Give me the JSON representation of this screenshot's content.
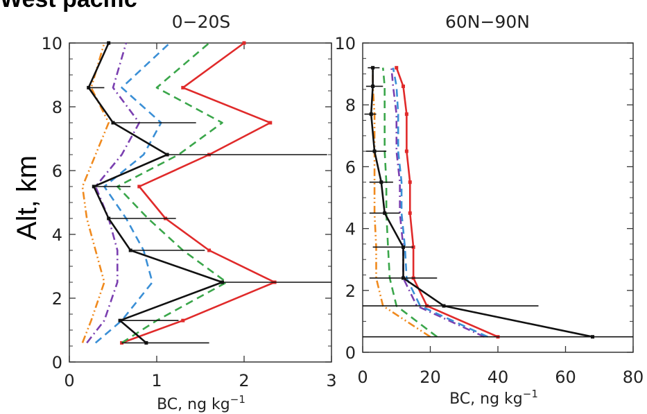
{
  "figure": {
    "region_title": "West pacific",
    "ylabel": "Alt, km",
    "colors": {
      "black": "#111111",
      "red": "#e02a2a",
      "green": "#3aa64a",
      "blue": "#3a8fd6",
      "purple": "#7a3fb0",
      "orange": "#f08a1e"
    }
  },
  "chart_data": [
    {
      "type": "line",
      "title": "0−20S",
      "xlabel_main": "BC, ng kg",
      "xlabel_sup": "−1",
      "ylabel": "Alt, km",
      "xlim": [
        0,
        3
      ],
      "ylim": [
        0,
        10
      ],
      "xticks": [
        "0",
        "1",
        "2",
        "3"
      ],
      "yticks": [
        "0",
        "2",
        "4",
        "6",
        "8",
        "10"
      ],
      "y": [
        0.6,
        1.3,
        2.5,
        3.5,
        4.5,
        5.5,
        6.5,
        7.5,
        8.6,
        10.0
      ],
      "series": [
        {
          "color": "red",
          "style": "solid",
          "markers": true,
          "x": [
            0.6,
            1.3,
            2.35,
            1.6,
            1.1,
            0.8,
            1.6,
            2.3,
            1.3,
            2.0
          ]
        },
        {
          "color": "green",
          "style": "dashed",
          "markers": false,
          "x": [
            0.6,
            1.0,
            1.8,
            1.3,
            0.9,
            0.55,
            1.25,
            1.75,
            1.0,
            1.6
          ]
        },
        {
          "color": "blue",
          "style": "dashed",
          "markers": false,
          "x": [
            0.3,
            0.6,
            0.95,
            0.85,
            0.65,
            0.4,
            0.85,
            1.05,
            0.6,
            1.15
          ]
        },
        {
          "color": "purple",
          "style": "dashdot",
          "markers": false,
          "x": [
            0.2,
            0.4,
            0.55,
            0.55,
            0.45,
            0.3,
            0.6,
            0.8,
            0.5,
            0.65
          ]
        },
        {
          "color": "orange",
          "style": "dashdotdot",
          "markers": false,
          "x": [
            0.15,
            0.25,
            0.4,
            0.3,
            0.2,
            0.15,
            0.3,
            0.45,
            0.25,
            0.4
          ]
        },
        {
          "color": "black",
          "style": "solid",
          "markers": true,
          "x": [
            0.88,
            0.58,
            1.75,
            0.7,
            0.45,
            0.28,
            1.12,
            0.5,
            0.22,
            0.45
          ],
          "xerr_low": [
            0.6,
            0.58,
            1.75,
            0.7,
            0.45,
            0.28,
            1.12,
            0.5,
            0.22,
            null
          ],
          "xerr_high": [
            1.6,
            1.25,
            3.0,
            1.55,
            1.22,
            0.7,
            2.95,
            1.45,
            0.4,
            null
          ]
        }
      ]
    },
    {
      "type": "line",
      "title": "60N−90N",
      "xlabel_main": "BC, ng kg",
      "xlabel_sup": "−1",
      "ylabel": "",
      "xlim": [
        0,
        80
      ],
      "ylim": [
        0,
        10
      ],
      "xticks": [
        "0",
        "20",
        "40",
        "60",
        "80"
      ],
      "yticks": [
        "0",
        "2",
        "4",
        "6",
        "8",
        "10"
      ],
      "y": [
        0.5,
        1.5,
        2.4,
        3.4,
        4.5,
        5.5,
        6.5,
        7.7,
        8.6,
        9.2
      ],
      "series": [
        {
          "color": "red",
          "style": "solid",
          "markers": true,
          "x": [
            40,
            19,
            15,
            15,
            14,
            14,
            13,
            13,
            12,
            10
          ]
        },
        {
          "color": "purple",
          "style": "dashdot",
          "markers": false,
          "x": [
            36,
            16,
            12,
            12,
            11,
            11,
            10,
            10,
            9,
            8.5
          ]
        },
        {
          "color": "blue",
          "style": "dashed",
          "markers": false,
          "x": [
            37,
            17,
            13,
            12.5,
            11.5,
            11.5,
            10.5,
            10.5,
            10,
            9
          ]
        },
        {
          "color": "green",
          "style": "dashed",
          "markers": false,
          "x": [
            22,
            10,
            8,
            7.5,
            7,
            7,
            6.5,
            6.5,
            6.5,
            6
          ]
        },
        {
          "color": "orange",
          "style": "dashdotdot",
          "markers": false,
          "x": [
            20,
            6,
            4,
            4,
            3.5,
            3.5,
            3.5,
            3.5,
            3,
            3
          ]
        },
        {
          "color": "black",
          "style": "solid",
          "markers": true,
          "x": [
            68,
            24,
            12,
            12,
            6.5,
            5.5,
            3.5,
            2.5,
            3,
            3
          ],
          "xerr_low": [
            0,
            0,
            2,
            3,
            2,
            2,
            1,
            0.5,
            1,
            1.5
          ],
          "xerr_high": [
            80,
            52,
            22,
            15,
            11,
            9,
            7,
            4,
            6,
            5
          ]
        }
      ]
    }
  ]
}
